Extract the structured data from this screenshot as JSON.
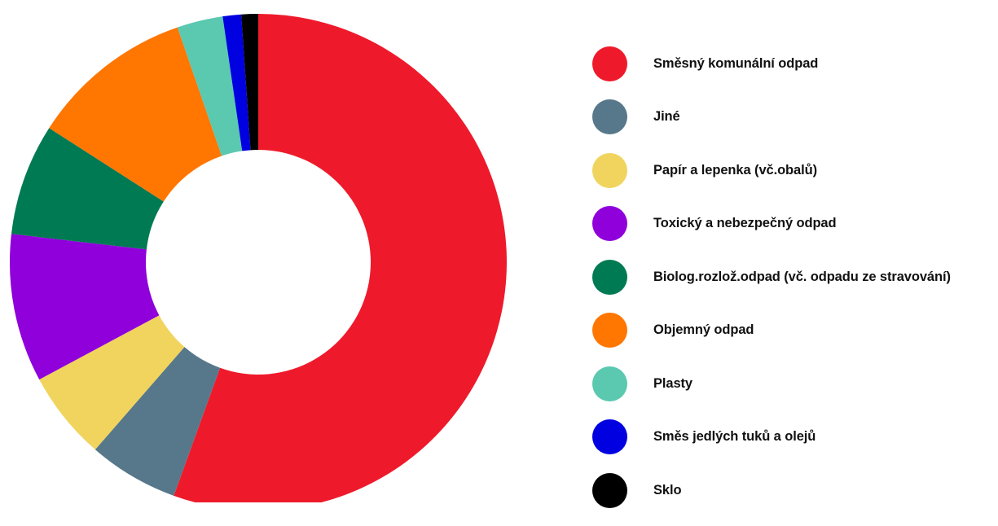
{
  "chart_data": {
    "type": "pie",
    "variant": "donut",
    "title": "",
    "legend_position": "right",
    "series": [
      {
        "name": "Směsný komunální odpad",
        "value": 55.8,
        "color": "#EE1A2B"
      },
      {
        "name": "Jiné",
        "value": 5.9,
        "color": "#57788A"
      },
      {
        "name": "Papír a lepenka (vč.obalů)",
        "value": 5.8,
        "color": "#F0D45E"
      },
      {
        "name": "Toxický a nebezpečný odpad",
        "value": 9.7,
        "color": "#8F00DB"
      },
      {
        "name": "Biolog.rozlož.odpad (vč. odpadu ze stravování)",
        "value": 7.3,
        "color": "#007A53"
      },
      {
        "name": "Objemný odpad",
        "value": 10.7,
        "color": "#FF7600"
      },
      {
        "name": "Plasty",
        "value": 3.0,
        "color": "#5BC8B0"
      },
      {
        "name": "Směs jedlých tuků a olejů",
        "value": 1.2,
        "color": "#0000E0"
      },
      {
        "name": "Sklo",
        "value": 1.1,
        "color": "#000000"
      }
    ]
  }
}
